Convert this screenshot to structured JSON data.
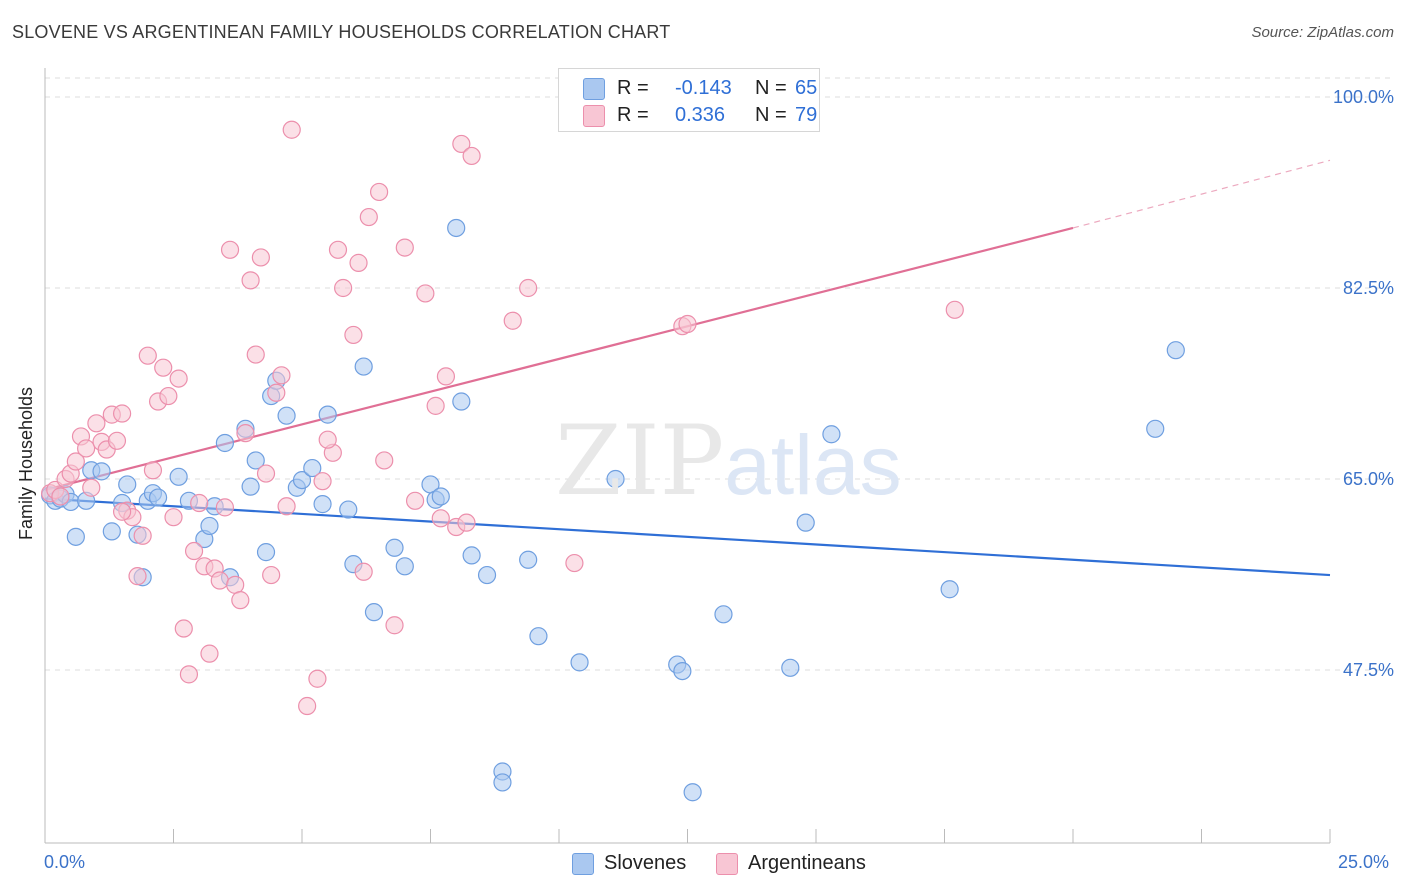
{
  "title": "SLOVENE VS ARGENTINEAN FAMILY HOUSEHOLDS CORRELATION CHART",
  "source": "Source: ZipAtlas.com",
  "watermark": {
    "zip": "ZIP",
    "atlas": "atlas"
  },
  "legend_top": [
    {
      "label": "R =",
      "r": "-0.143",
      "n_label": "N =",
      "n": "65",
      "color": "#aac8f0",
      "border": "#6f9fe0"
    },
    {
      "label": "R =",
      "r": "0.336",
      "n_label": "N =",
      "n": "79",
      "color": "#f8c6d4",
      "border": "#ec8fac"
    }
  ],
  "legend_bottom": [
    {
      "label": "Slovenes",
      "color": "#aac8f0",
      "border": "#6f9fe0"
    },
    {
      "label": "Argentineans",
      "color": "#f8c6d4",
      "border": "#ec8fac"
    }
  ],
  "chart_data": {
    "type": "scatter",
    "title": "SLOVENE VS ARGENTINEAN FAMILY HOUSEHOLDS CORRELATION CHART",
    "xlabel": "",
    "ylabel": "Family Households",
    "xlim": [
      0,
      25
    ],
    "ylim": [
      32,
      103
    ],
    "y_ticks": [
      100.0,
      82.5,
      65.0,
      47.5
    ],
    "y_tick_labels": [
      "100.0%",
      "82.5%",
      "65.0%",
      "47.5%"
    ],
    "x_tick_labels": [
      "0.0%",
      "25.0%"
    ],
    "grid": true,
    "series": [
      {
        "name": "Slovenes",
        "color": "#6f9fe0",
        "fill": "#aac8f0",
        "trend": {
          "x": [
            0.0,
            25.0
          ],
          "y": [
            63.2,
            56.2
          ],
          "color": "#2f6fd6"
        },
        "points": [
          [
            0.1,
            63.5
          ],
          [
            0.2,
            63.0
          ],
          [
            0.3,
            63.2
          ],
          [
            0.4,
            63.6
          ],
          [
            0.5,
            62.9
          ],
          [
            0.6,
            59.7
          ],
          [
            0.8,
            63.0
          ],
          [
            0.9,
            65.8
          ],
          [
            1.1,
            65.7
          ],
          [
            1.3,
            60.2
          ],
          [
            1.5,
            62.8
          ],
          [
            1.6,
            64.5
          ],
          [
            1.8,
            59.9
          ],
          [
            1.9,
            56.0
          ],
          [
            2.0,
            63.0
          ],
          [
            2.1,
            63.7
          ],
          [
            2.2,
            63.3
          ],
          [
            2.6,
            65.2
          ],
          [
            2.8,
            63.0
          ],
          [
            3.1,
            59.5
          ],
          [
            3.2,
            60.7
          ],
          [
            3.3,
            62.5
          ],
          [
            3.5,
            68.3
          ],
          [
            3.6,
            56.0
          ],
          [
            3.9,
            69.6
          ],
          [
            4.0,
            64.3
          ],
          [
            4.1,
            66.7
          ],
          [
            4.3,
            58.3
          ],
          [
            4.4,
            72.6
          ],
          [
            4.5,
            74.0
          ],
          [
            4.7,
            70.8
          ],
          [
            4.9,
            64.2
          ],
          [
            5.0,
            64.9
          ],
          [
            5.2,
            66.0
          ],
          [
            5.4,
            62.7
          ],
          [
            5.5,
            70.9
          ],
          [
            5.9,
            62.2
          ],
          [
            6.0,
            57.2
          ],
          [
            6.2,
            75.3
          ],
          [
            6.4,
            52.8
          ],
          [
            6.8,
            58.7
          ],
          [
            7.0,
            57.0
          ],
          [
            7.5,
            64.5
          ],
          [
            7.6,
            63.1
          ],
          [
            7.7,
            63.4
          ],
          [
            8.0,
            88.0
          ],
          [
            8.1,
            72.1
          ],
          [
            8.3,
            58.0
          ],
          [
            8.6,
            56.2
          ],
          [
            8.9,
            38.2
          ],
          [
            9.4,
            57.6
          ],
          [
            9.6,
            50.6
          ],
          [
            10.4,
            48.2
          ],
          [
            11.1,
            65.0
          ],
          [
            12.3,
            48.0
          ],
          [
            12.4,
            47.4
          ],
          [
            13.2,
            52.6
          ],
          [
            14.5,
            47.7
          ],
          [
            14.8,
            61.0
          ],
          [
            15.3,
            69.1
          ],
          [
            17.6,
            54.9
          ],
          [
            21.6,
            69.6
          ],
          [
            22.0,
            76.8
          ],
          [
            8.9,
            37.2
          ],
          [
            12.6,
            36.3
          ]
        ]
      },
      {
        "name": "Argentineans",
        "color": "#ec8fac",
        "fill": "#f8c6d4",
        "trend": {
          "x": [
            0.0,
            20.0
          ],
          "y": [
            64.0,
            88.0
          ],
          "color": "#e06f95",
          "dashed_extension": {
            "x": [
              20.0,
              25.0
            ],
            "y": [
              88.0,
              94.2
            ]
          }
        },
        "points": [
          [
            0.1,
            63.7
          ],
          [
            0.2,
            64.0
          ],
          [
            0.3,
            63.4
          ],
          [
            0.4,
            65.0
          ],
          [
            0.5,
            65.5
          ],
          [
            0.6,
            66.6
          ],
          [
            0.7,
            68.9
          ],
          [
            0.8,
            67.8
          ],
          [
            1.0,
            70.1
          ],
          [
            1.1,
            68.4
          ],
          [
            1.2,
            67.7
          ],
          [
            1.3,
            70.9
          ],
          [
            1.4,
            68.5
          ],
          [
            1.5,
            71.0
          ],
          [
            1.6,
            62.1
          ],
          [
            1.7,
            61.5
          ],
          [
            1.8,
            56.1
          ],
          [
            1.9,
            59.8
          ],
          [
            2.0,
            76.3
          ],
          [
            2.1,
            65.8
          ],
          [
            2.2,
            72.1
          ],
          [
            2.3,
            75.2
          ],
          [
            2.4,
            72.6
          ],
          [
            2.5,
            61.5
          ],
          [
            2.6,
            74.2
          ],
          [
            2.7,
            51.3
          ],
          [
            2.8,
            47.1
          ],
          [
            2.9,
            58.4
          ],
          [
            3.0,
            62.8
          ],
          [
            3.1,
            57.0
          ],
          [
            3.2,
            49.0
          ],
          [
            3.3,
            56.8
          ],
          [
            3.4,
            55.7
          ],
          [
            3.5,
            62.4
          ],
          [
            3.6,
            86.0
          ],
          [
            3.7,
            55.3
          ],
          [
            3.8,
            53.9
          ],
          [
            3.9,
            69.2
          ],
          [
            4.0,
            83.2
          ],
          [
            4.1,
            76.4
          ],
          [
            4.2,
            85.3
          ],
          [
            4.3,
            65.5
          ],
          [
            4.4,
            56.2
          ],
          [
            4.5,
            72.9
          ],
          [
            4.6,
            74.5
          ],
          [
            4.7,
            62.5
          ],
          [
            4.8,
            97.0
          ],
          [
            5.1,
            44.2
          ],
          [
            5.3,
            46.7
          ],
          [
            5.4,
            64.8
          ],
          [
            5.6,
            67.4
          ],
          [
            5.7,
            86.0
          ],
          [
            5.8,
            82.5
          ],
          [
            6.0,
            78.2
          ],
          [
            6.1,
            84.8
          ],
          [
            6.2,
            56.5
          ],
          [
            6.3,
            89.0
          ],
          [
            6.5,
            91.3
          ],
          [
            6.6,
            66.7
          ],
          [
            6.8,
            51.6
          ],
          [
            7.0,
            86.2
          ],
          [
            7.2,
            63.0
          ],
          [
            7.4,
            82.0
          ],
          [
            7.6,
            71.7
          ],
          [
            7.8,
            74.4
          ],
          [
            8.0,
            60.6
          ],
          [
            8.1,
            95.7
          ],
          [
            8.2,
            61.0
          ],
          [
            8.3,
            94.6
          ],
          [
            9.1,
            79.5
          ],
          [
            9.4,
            82.5
          ],
          [
            10.3,
            57.3
          ],
          [
            12.4,
            79.0
          ],
          [
            12.5,
            79.2
          ],
          [
            17.7,
            80.5
          ],
          [
            7.7,
            61.4
          ],
          [
            1.5,
            62.0
          ],
          [
            0.9,
            64.2
          ],
          [
            5.5,
            68.6
          ]
        ]
      }
    ]
  }
}
